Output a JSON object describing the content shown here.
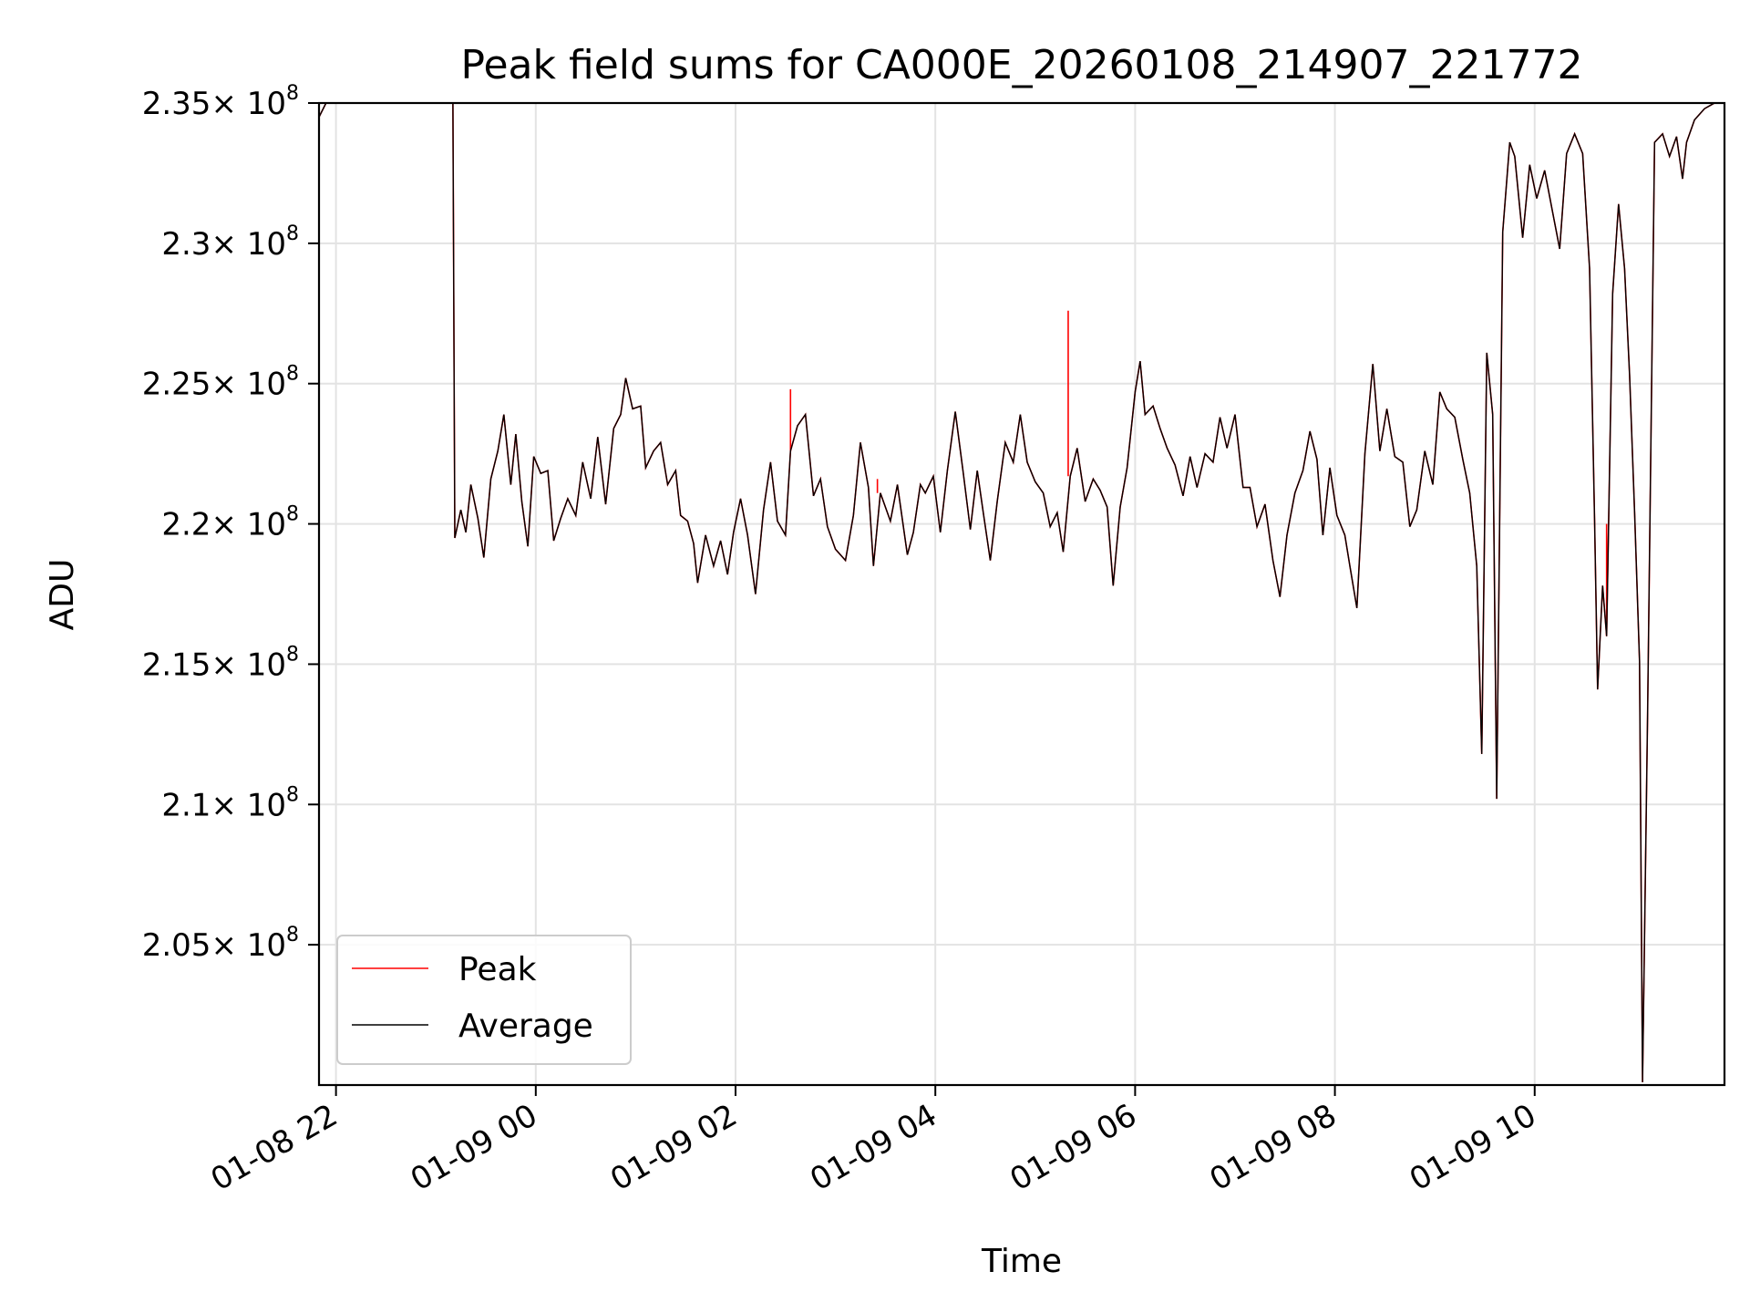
{
  "chart_data": {
    "type": "line",
    "title": "Peak field sums for CA000E_20260108_214907_221772",
    "xlabel": "Time",
    "ylabel": "ADU",
    "xlim": [
      21.83,
      35.9
    ],
    "ylim": [
      200000000,
      235000000
    ],
    "grid": true,
    "legend_position": "lower-left",
    "x_ticks": [
      {
        "value": 22,
        "label": "01-08 22"
      },
      {
        "value": 24,
        "label": "01-09 00"
      },
      {
        "value": 26,
        "label": "01-09 02"
      },
      {
        "value": 28,
        "label": "01-09 04"
      },
      {
        "value": 30,
        "label": "01-09 06"
      },
      {
        "value": 32,
        "label": "01-09 08"
      },
      {
        "value": 34,
        "label": "01-09 10"
      }
    ],
    "y_ticks": [
      {
        "value": 205000000,
        "mantissa": "2.05"
      },
      {
        "value": 210000000,
        "mantissa": "2.1"
      },
      {
        "value": 215000000,
        "mantissa": "2.15"
      },
      {
        "value": 220000000,
        "mantissa": "2.2"
      },
      {
        "value": 225000000,
        "mantissa": "2.25"
      },
      {
        "value": 230000000,
        "mantissa": "2.3"
      },
      {
        "value": 235000000,
        "mantissa": "2.35"
      }
    ],
    "y_tick_suffix": "× 10",
    "y_tick_exponent": "8",
    "series": [
      {
        "name": "Peak",
        "color": "#ff0000"
      },
      {
        "name": "Average",
        "color": "#000000"
      }
    ],
    "points_unit_note": "x in hours since 01-08 00:00, y in ADU",
    "average_points": [
      [
        21.83,
        234.5
      ],
      [
        21.9,
        235
      ],
      [
        22.5,
        235
      ],
      [
        23.1,
        235
      ],
      [
        23.17,
        235
      ],
      [
        23.19,
        219.5
      ],
      [
        23.25,
        220.5
      ],
      [
        23.3,
        219.7
      ],
      [
        23.35,
        221.4
      ],
      [
        23.42,
        220.2
      ],
      [
        23.48,
        218.8
      ],
      [
        23.55,
        221.6
      ],
      [
        23.62,
        222.6
      ],
      [
        23.68,
        223.9
      ],
      [
        23.75,
        221.4
      ],
      [
        23.8,
        223.2
      ],
      [
        23.86,
        220.8
      ],
      [
        23.92,
        219.2
      ],
      [
        23.98,
        222.4
      ],
      [
        24.05,
        221.8
      ],
      [
        24.12,
        221.9
      ],
      [
        24.18,
        219.4
      ],
      [
        24.25,
        220.2
      ],
      [
        24.32,
        220.9
      ],
      [
        24.4,
        220.3
      ],
      [
        24.47,
        222.2
      ],
      [
        24.55,
        220.9
      ],
      [
        24.62,
        223.1
      ],
      [
        24.7,
        220.7
      ],
      [
        24.78,
        223.4
      ],
      [
        24.85,
        223.9
      ],
      [
        24.9,
        225.2
      ],
      [
        24.97,
        224.1
      ],
      [
        25.05,
        224.2
      ],
      [
        25.1,
        222.0
      ],
      [
        25.18,
        222.6
      ],
      [
        25.25,
        222.9
      ],
      [
        25.32,
        221.4
      ],
      [
        25.4,
        221.9
      ],
      [
        25.45,
        220.3
      ],
      [
        25.52,
        220.1
      ],
      [
        25.58,
        219.3
      ],
      [
        25.62,
        217.9
      ],
      [
        25.7,
        219.6
      ],
      [
        25.78,
        218.5
      ],
      [
        25.85,
        219.4
      ],
      [
        25.92,
        218.2
      ],
      [
        25.98,
        219.7
      ],
      [
        26.05,
        220.9
      ],
      [
        26.12,
        219.6
      ],
      [
        26.2,
        217.5
      ],
      [
        26.28,
        220.5
      ],
      [
        26.35,
        222.2
      ],
      [
        26.42,
        220.1
      ],
      [
        26.5,
        219.6
      ],
      [
        26.55,
        222.6
      ],
      [
        26.62,
        223.5
      ],
      [
        26.7,
        223.9
      ],
      [
        26.78,
        221.0
      ],
      [
        26.85,
        221.6
      ],
      [
        26.92,
        219.9
      ],
      [
        27.0,
        219.1
      ],
      [
        27.1,
        218.7
      ],
      [
        27.18,
        220.3
      ],
      [
        27.25,
        222.9
      ],
      [
        27.33,
        221.3
      ],
      [
        27.38,
        218.5
      ],
      [
        27.45,
        221.1
      ],
      [
        27.55,
        220.1
      ],
      [
        27.62,
        221.4
      ],
      [
        27.72,
        218.9
      ],
      [
        27.78,
        219.7
      ],
      [
        27.85,
        221.4
      ],
      [
        27.9,
        221.1
      ],
      [
        27.98,
        221.7
      ],
      [
        28.05,
        219.7
      ],
      [
        28.12,
        221.9
      ],
      [
        28.2,
        224.0
      ],
      [
        28.28,
        221.8
      ],
      [
        28.35,
        219.8
      ],
      [
        28.42,
        221.9
      ],
      [
        28.48,
        220.4
      ],
      [
        28.55,
        218.7
      ],
      [
        28.62,
        220.8
      ],
      [
        28.7,
        222.9
      ],
      [
        28.78,
        222.2
      ],
      [
        28.85,
        223.9
      ],
      [
        28.92,
        222.2
      ],
      [
        29.0,
        221.5
      ],
      [
        29.08,
        221.1
      ],
      [
        29.15,
        219.9
      ],
      [
        29.22,
        220.4
      ],
      [
        29.28,
        219.0
      ],
      [
        29.35,
        221.7
      ],
      [
        29.42,
        222.7
      ],
      [
        29.5,
        220.8
      ],
      [
        29.58,
        221.6
      ],
      [
        29.65,
        221.2
      ],
      [
        29.72,
        220.6
      ],
      [
        29.78,
        217.8
      ],
      [
        29.85,
        220.6
      ],
      [
        29.92,
        222.0
      ],
      [
        30.0,
        224.7
      ],
      [
        30.05,
        225.8
      ],
      [
        30.1,
        223.9
      ],
      [
        30.18,
        224.2
      ],
      [
        30.25,
        223.4
      ],
      [
        30.32,
        222.7
      ],
      [
        30.4,
        222.1
      ],
      [
        30.48,
        221.0
      ],
      [
        30.55,
        222.4
      ],
      [
        30.62,
        221.3
      ],
      [
        30.7,
        222.5
      ],
      [
        30.78,
        222.2
      ],
      [
        30.85,
        223.8
      ],
      [
        30.92,
        222.7
      ],
      [
        31.0,
        223.9
      ],
      [
        31.08,
        221.3
      ],
      [
        31.15,
        221.3
      ],
      [
        31.22,
        219.9
      ],
      [
        31.3,
        220.7
      ],
      [
        31.38,
        218.7
      ],
      [
        31.45,
        217.4
      ],
      [
        31.52,
        219.6
      ],
      [
        31.6,
        221.1
      ],
      [
        31.68,
        221.9
      ],
      [
        31.75,
        223.3
      ],
      [
        31.82,
        222.3
      ],
      [
        31.88,
        219.6
      ],
      [
        31.95,
        222.0
      ],
      [
        32.02,
        220.3
      ],
      [
        32.1,
        219.6
      ],
      [
        32.15,
        218.5
      ],
      [
        32.22,
        217.0
      ],
      [
        32.3,
        222.5
      ],
      [
        32.38,
        225.7
      ],
      [
        32.45,
        222.6
      ],
      [
        32.52,
        224.1
      ],
      [
        32.6,
        222.4
      ],
      [
        32.68,
        222.2
      ],
      [
        32.75,
        219.9
      ],
      [
        32.82,
        220.5
      ],
      [
        32.9,
        222.6
      ],
      [
        32.98,
        221.4
      ],
      [
        33.05,
        224.7
      ],
      [
        33.12,
        224.1
      ],
      [
        33.2,
        223.8
      ],
      [
        33.28,
        222.3
      ],
      [
        33.35,
        221.1
      ],
      [
        33.42,
        218.5
      ],
      [
        33.47,
        211.8
      ],
      [
        33.52,
        226.1
      ],
      [
        33.58,
        223.9
      ],
      [
        33.62,
        210.2
      ],
      [
        33.68,
        230.4
      ],
      [
        33.75,
        233.6
      ],
      [
        33.8,
        233.1
      ],
      [
        33.88,
        230.2
      ],
      [
        33.95,
        232.8
      ],
      [
        34.02,
        231.6
      ],
      [
        34.1,
        232.6
      ],
      [
        34.18,
        231.1
      ],
      [
        34.25,
        229.8
      ],
      [
        34.32,
        233.2
      ],
      [
        34.4,
        233.9
      ],
      [
        34.48,
        233.2
      ],
      [
        34.55,
        229.1
      ],
      [
        34.6,
        220.1
      ],
      [
        34.63,
        214.1
      ],
      [
        34.68,
        217.8
      ],
      [
        34.72,
        216.0
      ],
      [
        34.78,
        228.2
      ],
      [
        34.84,
        231.4
      ],
      [
        34.9,
        229.1
      ],
      [
        34.95,
        225.3
      ],
      [
        35.0,
        220.4
      ],
      [
        35.05,
        215.1
      ],
      [
        35.08,
        200.1
      ],
      [
        35.13,
        213.1
      ],
      [
        35.2,
        233.6
      ],
      [
        35.28,
        233.9
      ],
      [
        35.35,
        233.1
      ],
      [
        35.42,
        233.8
      ],
      [
        35.48,
        232.3
      ],
      [
        35.52,
        233.6
      ],
      [
        35.6,
        234.4
      ],
      [
        35.7,
        234.8
      ],
      [
        35.8,
        235
      ],
      [
        35.9,
        235
      ]
    ],
    "peak_spikes": [
      {
        "x": 26.55,
        "y": 224.8
      },
      {
        "x": 27.42,
        "y": 221.6
      },
      {
        "x": 29.33,
        "y": 227.6
      },
      {
        "x": 34.72,
        "y": 220.0
      }
    ]
  }
}
